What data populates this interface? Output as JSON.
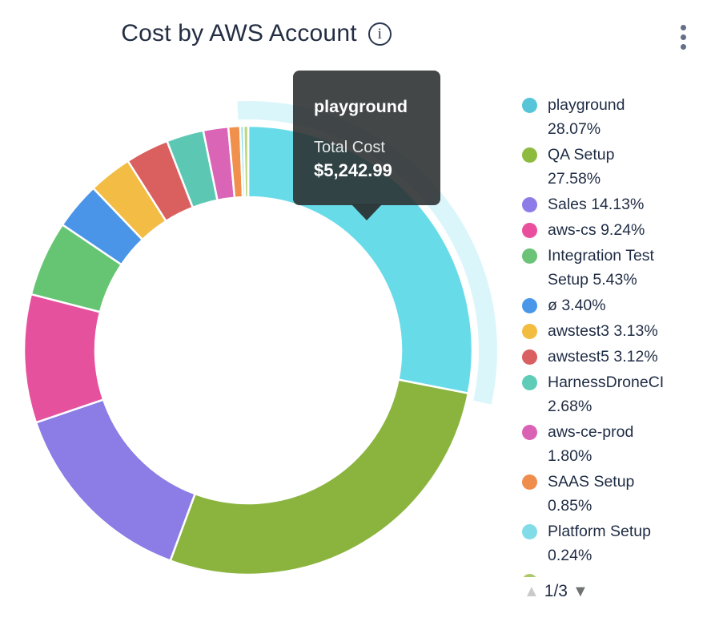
{
  "header": {
    "title": "Cost by AWS Account",
    "info_icon_glyph": "i"
  },
  "tooltip": {
    "name": "playground",
    "label": "Total Cost",
    "value": "$5,242.99"
  },
  "legend": {
    "items": [
      {
        "color": "#57c5d8",
        "lines": [
          "playground",
          "28.07%"
        ]
      },
      {
        "color": "#8cbb3f",
        "lines": [
          "QA Setup",
          "27.58%"
        ]
      },
      {
        "color": "#8d7ce8",
        "lines": [
          "Sales 14.13%"
        ]
      },
      {
        "color": "#ea4f9d",
        "lines": [
          "aws-cs 9.24%"
        ]
      },
      {
        "color": "#6ac376",
        "lines": [
          "Integration Test",
          "Setup 5.43%"
        ]
      },
      {
        "color": "#4a97ea",
        "lines": [
          "ø 3.40%"
        ]
      },
      {
        "color": "#f2bc41",
        "lines": [
          "awstest3 3.13%"
        ]
      },
      {
        "color": "#da5f61",
        "lines": [
          "awstest5 3.12%"
        ]
      },
      {
        "color": "#5fccb7",
        "lines": [
          "HarnessDroneCI",
          "2.68%"
        ]
      },
      {
        "color": "#da62b4",
        "lines": [
          "aws-ce-prod",
          "1.80%"
        ]
      },
      {
        "color": "#ef8d4c",
        "lines": [
          "SAAS Setup",
          "0.85%"
        ]
      },
      {
        "color": "#82dce8",
        "lines": [
          "Platform Setup",
          "0.24%"
        ]
      },
      {
        "color": "#abc96a",
        "lines": [],
        "partial": true
      }
    ],
    "pager": {
      "up_icon": "▲",
      "text": "1/3",
      "down_icon": "▼"
    }
  },
  "chart_data": {
    "type": "pie",
    "subtype": "donut",
    "title": "Cost by AWS Account",
    "hovered_slice": "playground",
    "hovered_value_label": "Total Cost $5,242.99",
    "unit": "%",
    "slices": [
      {
        "label": "playground",
        "value": 28.07,
        "color": "#68dbe9",
        "hovered": true
      },
      {
        "label": "QA Setup",
        "value": 27.58,
        "color": "#8ab43e"
      },
      {
        "label": "Sales",
        "value": 14.13,
        "color": "#8b7ce6"
      },
      {
        "label": "aws-cs",
        "value": 9.24,
        "color": "#e6519e"
      },
      {
        "label": "Integration Test Setup",
        "value": 5.43,
        "color": "#66c573"
      },
      {
        "label": "ø",
        "value": 3.4,
        "color": "#4b95e8"
      },
      {
        "label": "awstest3",
        "value": 3.13,
        "color": "#f2bc45"
      },
      {
        "label": "awstest5",
        "value": 3.12,
        "color": "#da5f5f"
      },
      {
        "label": "HarnessDroneCI",
        "value": 2.68,
        "color": "#5cc8b3"
      },
      {
        "label": "aws-ce-prod",
        "value": 1.8,
        "color": "#da64b6"
      },
      {
        "label": "SAAS Setup",
        "value": 0.85,
        "color": "#f0904c"
      },
      {
        "label": "Platform Setup",
        "value": 0.24,
        "color": "#8adfe9"
      },
      {
        "label": "",
        "value": 0.33,
        "color": "#bcd77e"
      }
    ],
    "legend_position": "right",
    "halo": {
      "inner_radius": 288,
      "outer_radius": 311,
      "opacity": 0.24
    }
  }
}
